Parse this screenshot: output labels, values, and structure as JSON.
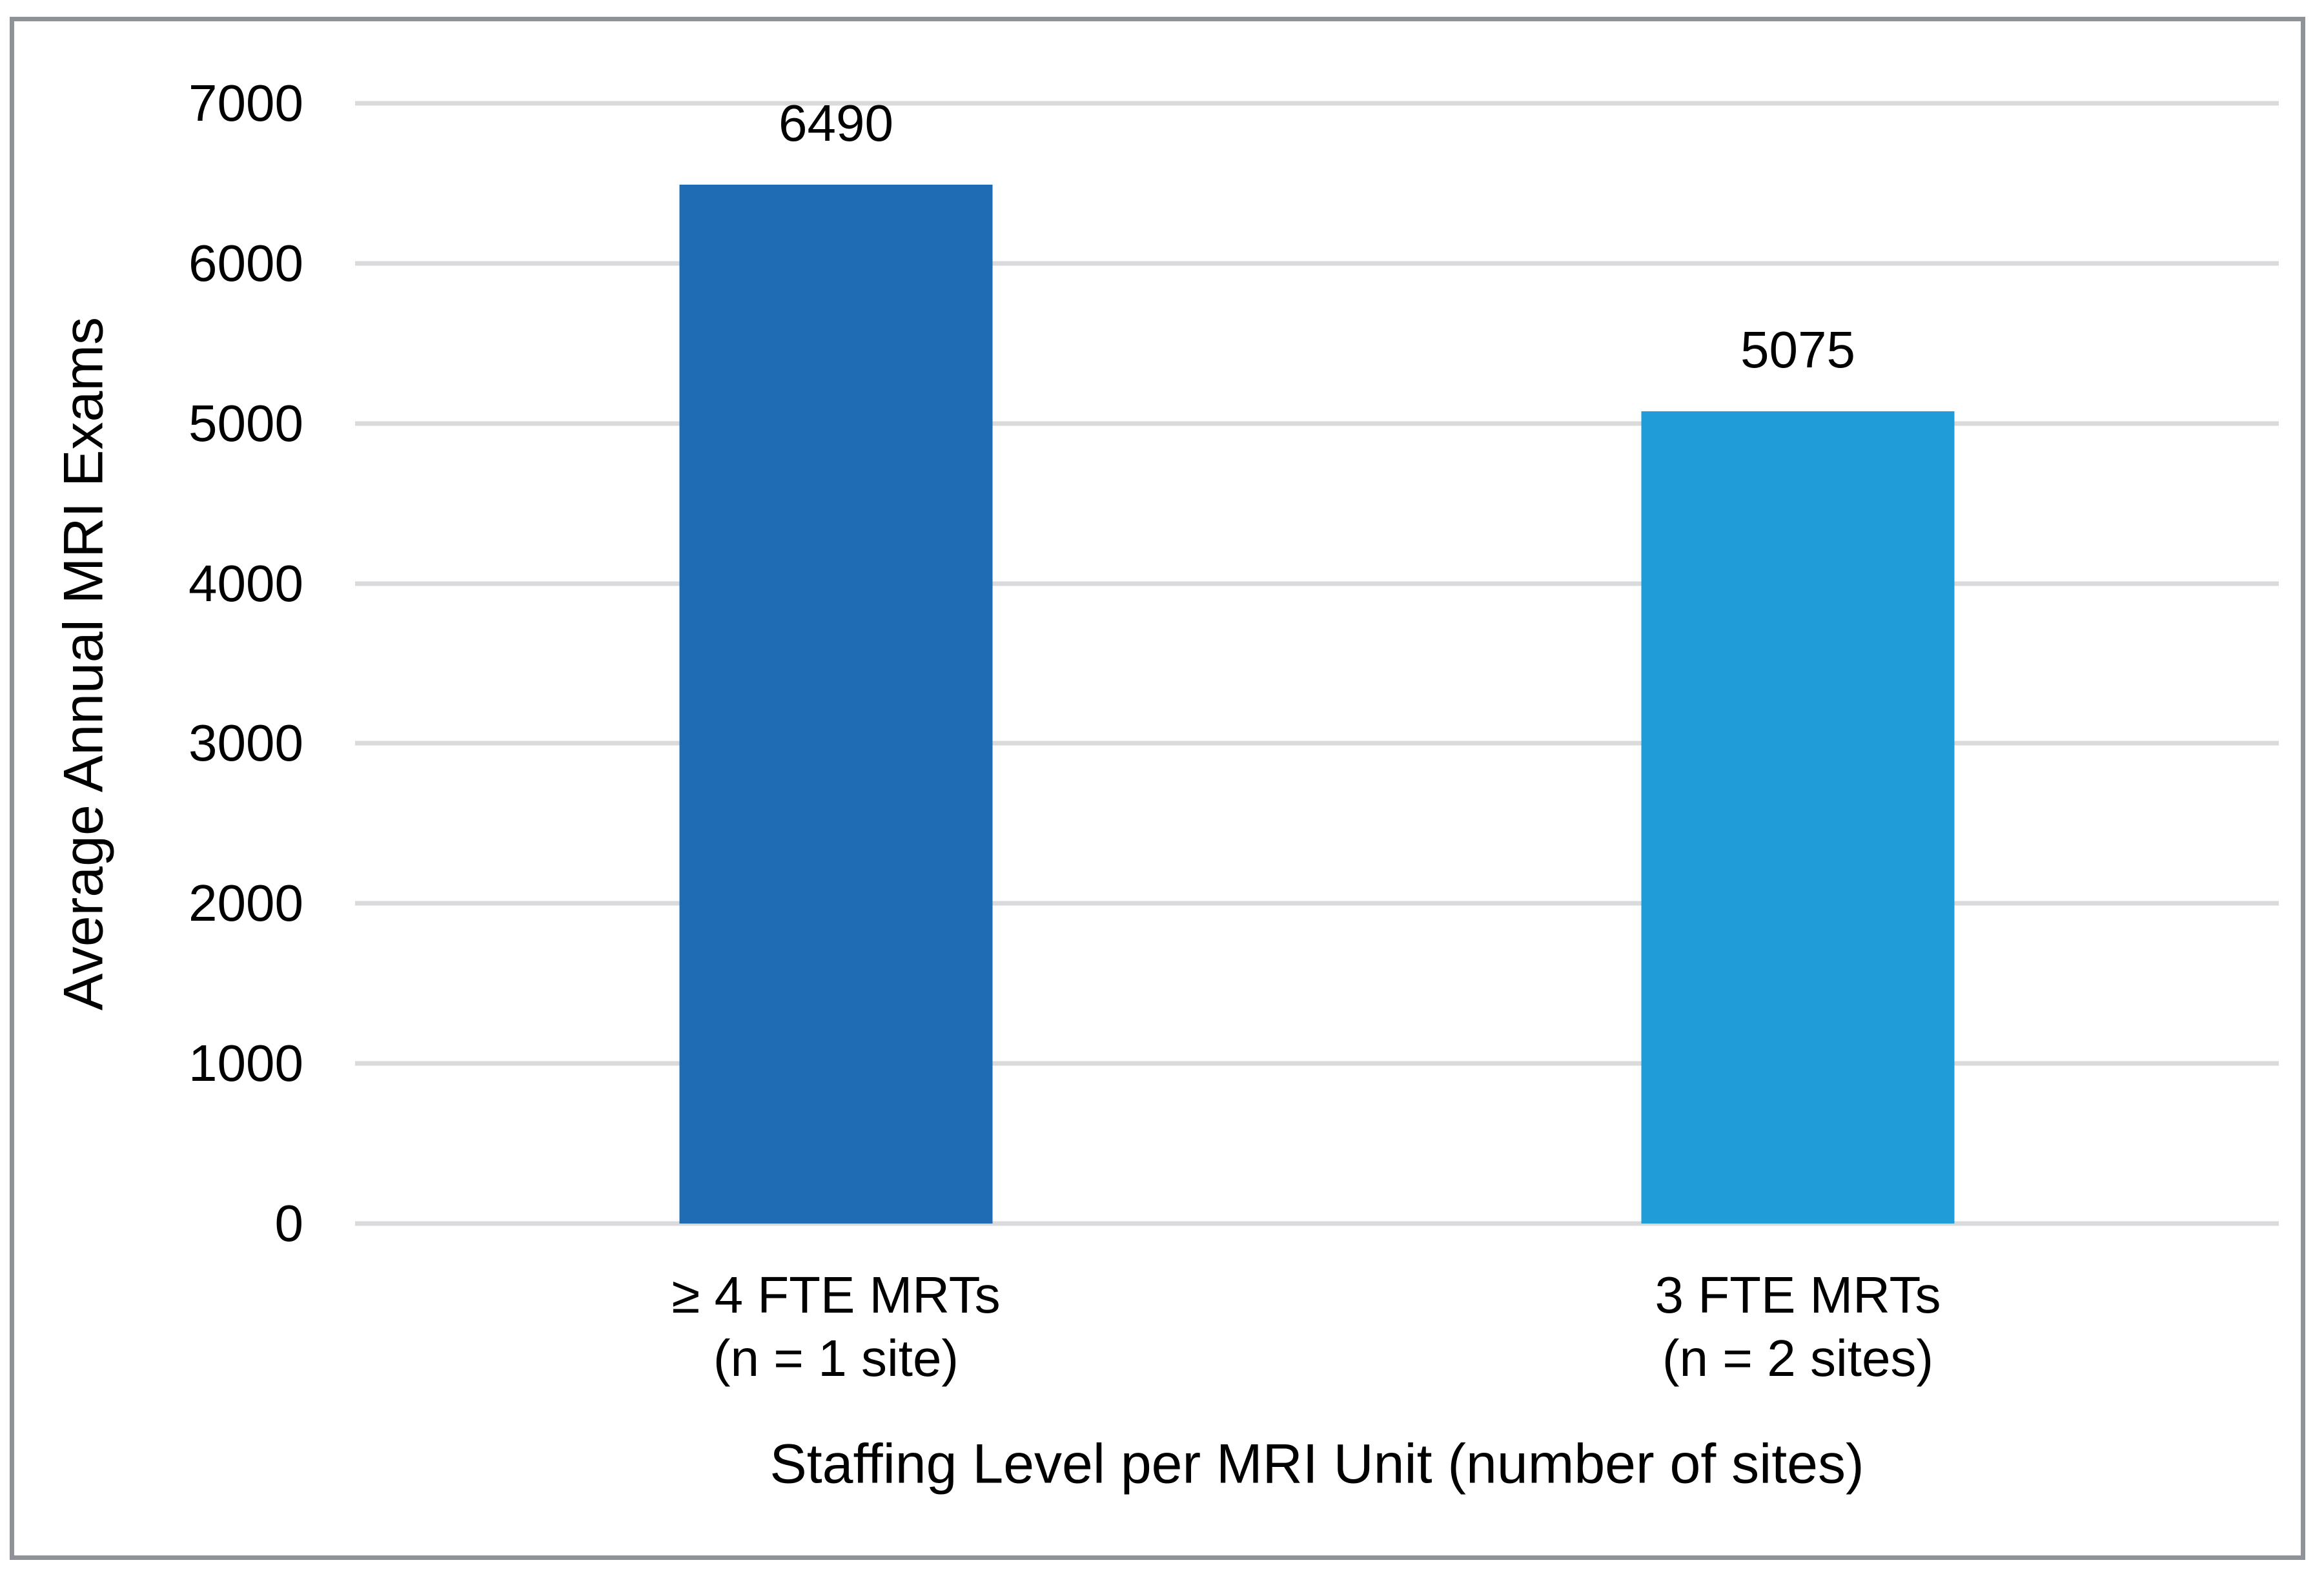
{
  "chart_data": {
    "type": "bar",
    "title": "",
    "categories": [
      {
        "line1": "≥ 4 FTE MRTs",
        "line2": "(n = 1 site)"
      },
      {
        "line1": "3 FTE MRTs",
        "line2": "(n = 2 sites)"
      }
    ],
    "values": [
      6490,
      5075
    ],
    "value_labels": [
      "6490",
      "5075"
    ],
    "bar_colors": [
      "#1f6cb4",
      "#209cd8"
    ],
    "xlabel": "Staffing Level per MRI Unit (number of sites)",
    "ylabel": "Average Annual MRI Exams",
    "ylim": [
      0,
      7000
    ],
    "yticks": [
      0,
      1000,
      2000,
      3000,
      4000,
      5000,
      6000,
      7000
    ],
    "grid": true,
    "gridline_color": "#d9dadc",
    "legend": "none",
    "frame_border_color": "#8f9296",
    "text_color": "#000000"
  }
}
